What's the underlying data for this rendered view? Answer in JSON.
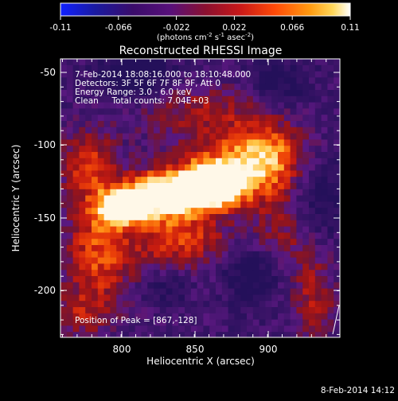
{
  "colorbar": {
    "ticks": [
      "-0.11",
      "-0.066",
      "-0.022",
      "0.022",
      "0.066",
      "0.11"
    ],
    "units_text": "(photons cm",
    "units_exp1": "-2",
    "units_mid": " s",
    "units_exp2": "-1",
    "units_tail": " asec",
    "units_exp3": "-2",
    "units_close": ")",
    "colors": [
      "#1020ff",
      "#1a1aa0",
      "#3a0c6a",
      "#58107a",
      "#8a1030",
      "#c81818",
      "#ff4a08",
      "#ff9a10",
      "#ffd85a",
      "#ffffff"
    ]
  },
  "image": {
    "title": "Reconstructed RHESSI Image",
    "info_lines": [
      "7-Feb-2014 18:08:16.000 to 18:10:48.000",
      "Detectors: 3F 5F 6F 7F 8F 9F, Att 0",
      "Energy Range: 3.0 - 6.0 keV",
      "Clean     Total counts: 7.04E+03"
    ],
    "peak_text": "Position of Peak = [867,-128]",
    "xlabel": "Heliocentric X (arcsec)",
    "ylabel": "Heliocentric Y (arcsec)",
    "x_ticks": [
      "800",
      "850",
      "900"
    ],
    "y_ticks": [
      "-50",
      "-100",
      "-150",
      "-200"
    ],
    "timestamp": "8-Feb-2014 14:12"
  }
}
